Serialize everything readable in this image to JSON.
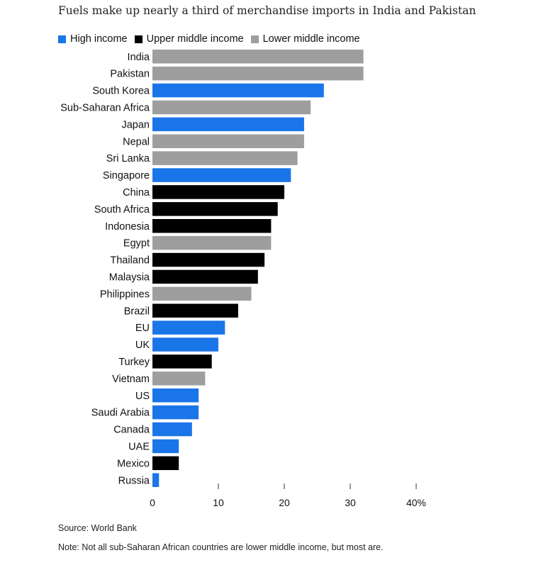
{
  "chart_data": {
    "type": "bar",
    "orientation": "horizontal",
    "title": "Fuels make up nearly a third of merchandise imports in India and Pakistan",
    "xlim": [
      0,
      40
    ],
    "xticks": [
      {
        "value": 0,
        "label": "0"
      },
      {
        "value": 10,
        "label": "10"
      },
      {
        "value": 20,
        "label": "20"
      },
      {
        "value": 30,
        "label": "30"
      },
      {
        "value": 40,
        "label": "40%"
      }
    ],
    "grid": false,
    "legend_position": "top-left",
    "legend": [
      {
        "key": "high",
        "label": "High income",
        "color": "#1a75e8"
      },
      {
        "key": "upper",
        "label": "Upper middle income",
        "color": "#000000"
      },
      {
        "key": "lower",
        "label": "Lower middle income",
        "color": "#9e9e9e"
      }
    ],
    "bars": [
      {
        "label": "India",
        "value": 32,
        "group": "lower"
      },
      {
        "label": "Pakistan",
        "value": 32,
        "group": "lower"
      },
      {
        "label": "South Korea",
        "value": 26,
        "group": "high"
      },
      {
        "label": "Sub-Saharan Africa",
        "value": 24,
        "group": "lower"
      },
      {
        "label": "Japan",
        "value": 23,
        "group": "high"
      },
      {
        "label": "Nepal",
        "value": 23,
        "group": "lower"
      },
      {
        "label": "Sri Lanka",
        "value": 22,
        "group": "lower"
      },
      {
        "label": "Singapore",
        "value": 21,
        "group": "high"
      },
      {
        "label": "China",
        "value": 20,
        "group": "upper"
      },
      {
        "label": "South Africa",
        "value": 19,
        "group": "upper"
      },
      {
        "label": "Indonesia",
        "value": 18,
        "group": "upper"
      },
      {
        "label": "Egypt",
        "value": 18,
        "group": "lower"
      },
      {
        "label": "Thailand",
        "value": 17,
        "group": "upper"
      },
      {
        "label": "Malaysia",
        "value": 16,
        "group": "upper"
      },
      {
        "label": "Philippines",
        "value": 15,
        "group": "lower"
      },
      {
        "label": "Brazil",
        "value": 13,
        "group": "upper"
      },
      {
        "label": "EU",
        "value": 11,
        "group": "high"
      },
      {
        "label": "UK",
        "value": 10,
        "group": "high"
      },
      {
        "label": "Turkey",
        "value": 9,
        "group": "upper"
      },
      {
        "label": "Vietnam",
        "value": 8,
        "group": "lower"
      },
      {
        "label": "US",
        "value": 7,
        "group": "high"
      },
      {
        "label": "Saudi Arabia",
        "value": 7,
        "group": "high"
      },
      {
        "label": "Canada",
        "value": 6,
        "group": "high"
      },
      {
        "label": "UAE",
        "value": 4,
        "group": "high"
      },
      {
        "label": "Mexico",
        "value": 4,
        "group": "upper"
      },
      {
        "label": "Russia",
        "value": 1,
        "group": "high"
      }
    ]
  },
  "source": "Source: World Bank",
  "note": "Note: Not all sub-Saharan African countries are lower middle income, but most are."
}
